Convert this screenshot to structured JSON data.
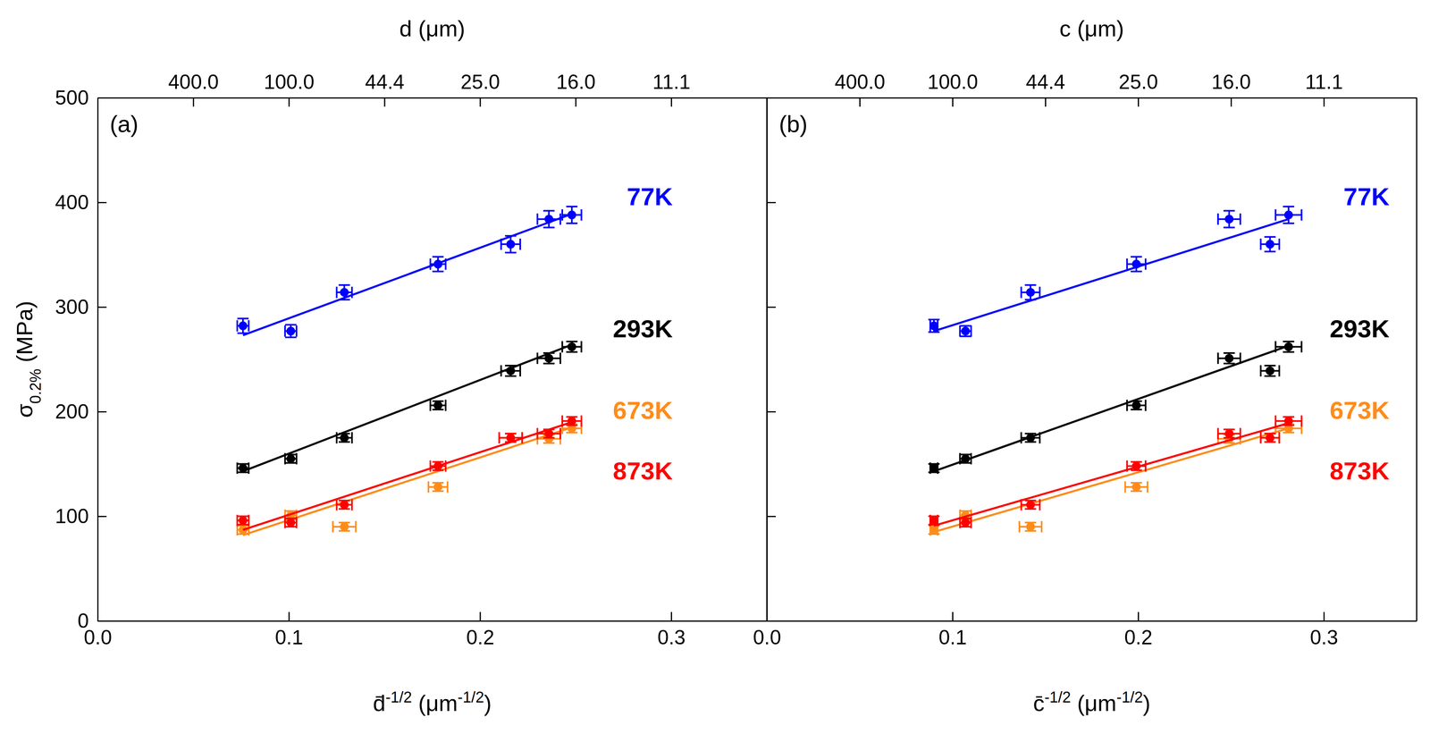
{
  "chart_data": [
    {
      "type": "scatter",
      "title": "(a)",
      "xlabel": "d̄-1/2 (μm-1/2)",
      "ylabel": "σ0.2% (MPa)",
      "x2label": "d (μm)",
      "xlim": [
        0,
        0.35
      ],
      "xticks": [
        {
          "value": 0,
          "label": "0.0"
        },
        0.1,
        0.2,
        0.3
      ],
      "x2lim": [
        0,
        0.35
      ],
      "x2ticks": [
        {
          "value": 0.05,
          "label": "400.0"
        },
        {
          "value": 0.1,
          "label": "100.0"
        },
        {
          "value": 0.15,
          "label": "44.4"
        },
        {
          "value": 0.2,
          "label": "25.0"
        },
        {
          "value": 0.25,
          "label": "16.0"
        },
        {
          "value": 0.3,
          "label": "11.1"
        }
      ],
      "ylim": [
        0,
        500
      ],
      "yticks": [
        0,
        100,
        200,
        300,
        400,
        500
      ],
      "series": [
        {
          "name": "77K",
          "color": "#0000ff",
          "marker": "circle",
          "x": [
            0.076,
            0.101,
            0.129,
            0.178,
            0.216,
            0.236,
            0.248
          ],
          "values": [
            282,
            277,
            314,
            341,
            360,
            384,
            388
          ],
          "x_error": [
            0.003,
            0.003,
            0.004,
            0.004,
            0.005,
            0.006,
            0.005
          ],
          "y_error": [
            7,
            6,
            7,
            7,
            8,
            8,
            8
          ]
        },
        {
          "type": "line",
          "color": "#0000ff",
          "line_style": "solid",
          "x": [
            0.076,
            0.248
          ],
          "values": [
            273,
            389
          ]
        },
        {
          "name": "293K",
          "color": "#000000",
          "marker": "circle",
          "x": [
            0.076,
            0.101,
            0.129,
            0.178,
            0.216,
            0.236,
            0.248
          ],
          "values": [
            146,
            155,
            175,
            206,
            239,
            251,
            262
          ],
          "x_error": [
            0.003,
            0.003,
            0.004,
            0.004,
            0.005,
            0.006,
            0.005
          ],
          "y_error": [
            4,
            4,
            4,
            4,
            5,
            5,
            5
          ]
        },
        {
          "type": "line",
          "color": "#000000",
          "line_style": "solid",
          "x": [
            0.076,
            0.248
          ],
          "values": [
            143,
            264
          ]
        },
        {
          "name": "673K",
          "color": "#ff8c1a",
          "marker": "circle",
          "x": [
            0.076,
            0.101,
            0.129,
            0.178,
            0.216,
            0.236,
            0.248
          ],
          "values": [
            87,
            101,
            90,
            128,
            175,
            174,
            184
          ],
          "x_error": [
            0.003,
            0.003,
            0.006,
            0.005,
            0.006,
            0.006,
            0.005
          ],
          "y_error": [
            4,
            4,
            4,
            4,
            4,
            4,
            4
          ]
        },
        {
          "type": "line",
          "color": "#ff8c1a",
          "line_style": "solid",
          "x": [
            0.076,
            0.248
          ],
          "values": [
            82,
            185
          ]
        },
        {
          "name": "873K",
          "color": "#ff0000",
          "marker": "circle",
          "x": [
            0.076,
            0.101,
            0.129,
            0.178,
            0.216,
            0.236,
            0.248
          ],
          "values": [
            96,
            94,
            111,
            148,
            175,
            179,
            191
          ],
          "x_error": [
            0.003,
            0.003,
            0.004,
            0.004,
            0.006,
            0.006,
            0.005
          ],
          "y_error": [
            4,
            4,
            4,
            4,
            4,
            4,
            4
          ]
        },
        {
          "type": "line",
          "color": "#ff0000",
          "line_style": "solid",
          "x": [
            0.076,
            0.248
          ],
          "values": [
            87,
            190
          ]
        }
      ]
    },
    {
      "type": "scatter",
      "title": "(b)",
      "xlabel": "c̄-1/2 (μm-1/2)",
      "x2label": "c (μm)",
      "xlim": [
        0,
        0.35
      ],
      "xticks": [
        {
          "value": 0,
          "label": "0.0"
        },
        0.1,
        0.2,
        0.3
      ],
      "x2lim": [
        0,
        0.35
      ],
      "x2ticks": [
        {
          "value": 0.05,
          "label": "400.0"
        },
        {
          "value": 0.1,
          "label": "100.0"
        },
        {
          "value": 0.15,
          "label": "44.4"
        },
        {
          "value": 0.2,
          "label": "25.0"
        },
        {
          "value": 0.25,
          "label": "16.0"
        },
        {
          "value": 0.3,
          "label": "11.1"
        }
      ],
      "ylim": [
        0,
        500
      ],
      "yticks": [
        0,
        100,
        200,
        300,
        400,
        500
      ],
      "tick_labels": "x",
      "series": [
        {
          "name": "77K",
          "color": "#0000ff",
          "marker": "circle",
          "x": [
            0.09,
            0.107,
            0.142,
            0.199,
            0.249,
            0.271,
            0.281
          ],
          "values": [
            282,
            277,
            314,
            341,
            384,
            360,
            388
          ],
          "x_error": [
            0.002,
            0.003,
            0.005,
            0.005,
            0.006,
            0.005,
            0.007
          ],
          "y_error": [
            6,
            5,
            7,
            7,
            8,
            7,
            8
          ]
        },
        {
          "type": "line",
          "color": "#0000ff",
          "line_style": "solid",
          "x": [
            0.09,
            0.281
          ],
          "values": [
            277,
            384
          ]
        },
        {
          "name": "293K",
          "color": "#000000",
          "marker": "circle",
          "x": [
            0.09,
            0.107,
            0.142,
            0.199,
            0.249,
            0.271,
            0.281
          ],
          "values": [
            146,
            155,
            175,
            206,
            251,
            239,
            262
          ],
          "x_error": [
            0.002,
            0.003,
            0.005,
            0.005,
            0.006,
            0.005,
            0.007
          ],
          "y_error": [
            4,
            4,
            4,
            4,
            5,
            5,
            5
          ]
        },
        {
          "type": "line",
          "color": "#000000",
          "line_style": "solid",
          "x": [
            0.09,
            0.281
          ],
          "values": [
            143,
            263
          ]
        },
        {
          "name": "673K",
          "color": "#ff8c1a",
          "marker": "circle",
          "x": [
            0.09,
            0.107,
            0.142,
            0.199,
            0.249,
            0.271,
            0.281
          ],
          "values": [
            87,
            101,
            90,
            128,
            174,
            175,
            184
          ],
          "x_error": [
            0.002,
            0.003,
            0.006,
            0.006,
            0.006,
            0.005,
            0.007
          ],
          "y_error": [
            4,
            4,
            4,
            4,
            4,
            4,
            4
          ]
        },
        {
          "type": "line",
          "color": "#ff8c1a",
          "line_style": "solid",
          "x": [
            0.09,
            0.281
          ],
          "values": [
            85,
            184
          ]
        },
        {
          "name": "873K",
          "color": "#ff0000",
          "marker": "circle",
          "x": [
            0.09,
            0.107,
            0.142,
            0.199,
            0.249,
            0.271,
            0.281
          ],
          "values": [
            96,
            94,
            111,
            148,
            179,
            175,
            191
          ],
          "x_error": [
            0.002,
            0.003,
            0.005,
            0.005,
            0.006,
            0.005,
            0.007
          ],
          "y_error": [
            4,
            4,
            4,
            4,
            4,
            4,
            4
          ]
        },
        {
          "type": "line",
          "color": "#ff0000",
          "line_style": "solid",
          "x": [
            0.09,
            0.281
          ],
          "values": [
            91,
            189
          ]
        }
      ]
    }
  ]
}
